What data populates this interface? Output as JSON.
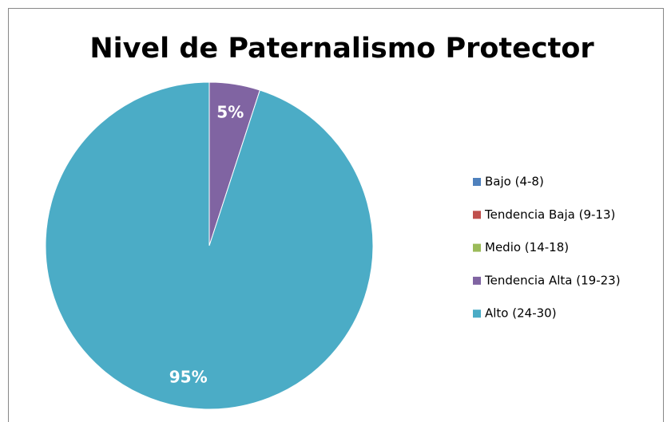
{
  "chart_data": {
    "type": "pie",
    "title": "Nivel de Paternalismo Protector",
    "categories": [
      "Bajo (4-8)",
      "Tendencia Baja (9-13)",
      "Medio (14-18)",
      "Tendencia Alta (19-23)",
      "Alto (24-30)"
    ],
    "values": [
      0,
      0,
      0,
      5,
      95
    ],
    "value_labels": [
      null,
      null,
      null,
      "5%",
      "95%"
    ],
    "colors": [
      "#4f81bd",
      "#c0504d",
      "#9bbb59",
      "#8064a2",
      "#4bacc6"
    ],
    "legend": "right"
  }
}
